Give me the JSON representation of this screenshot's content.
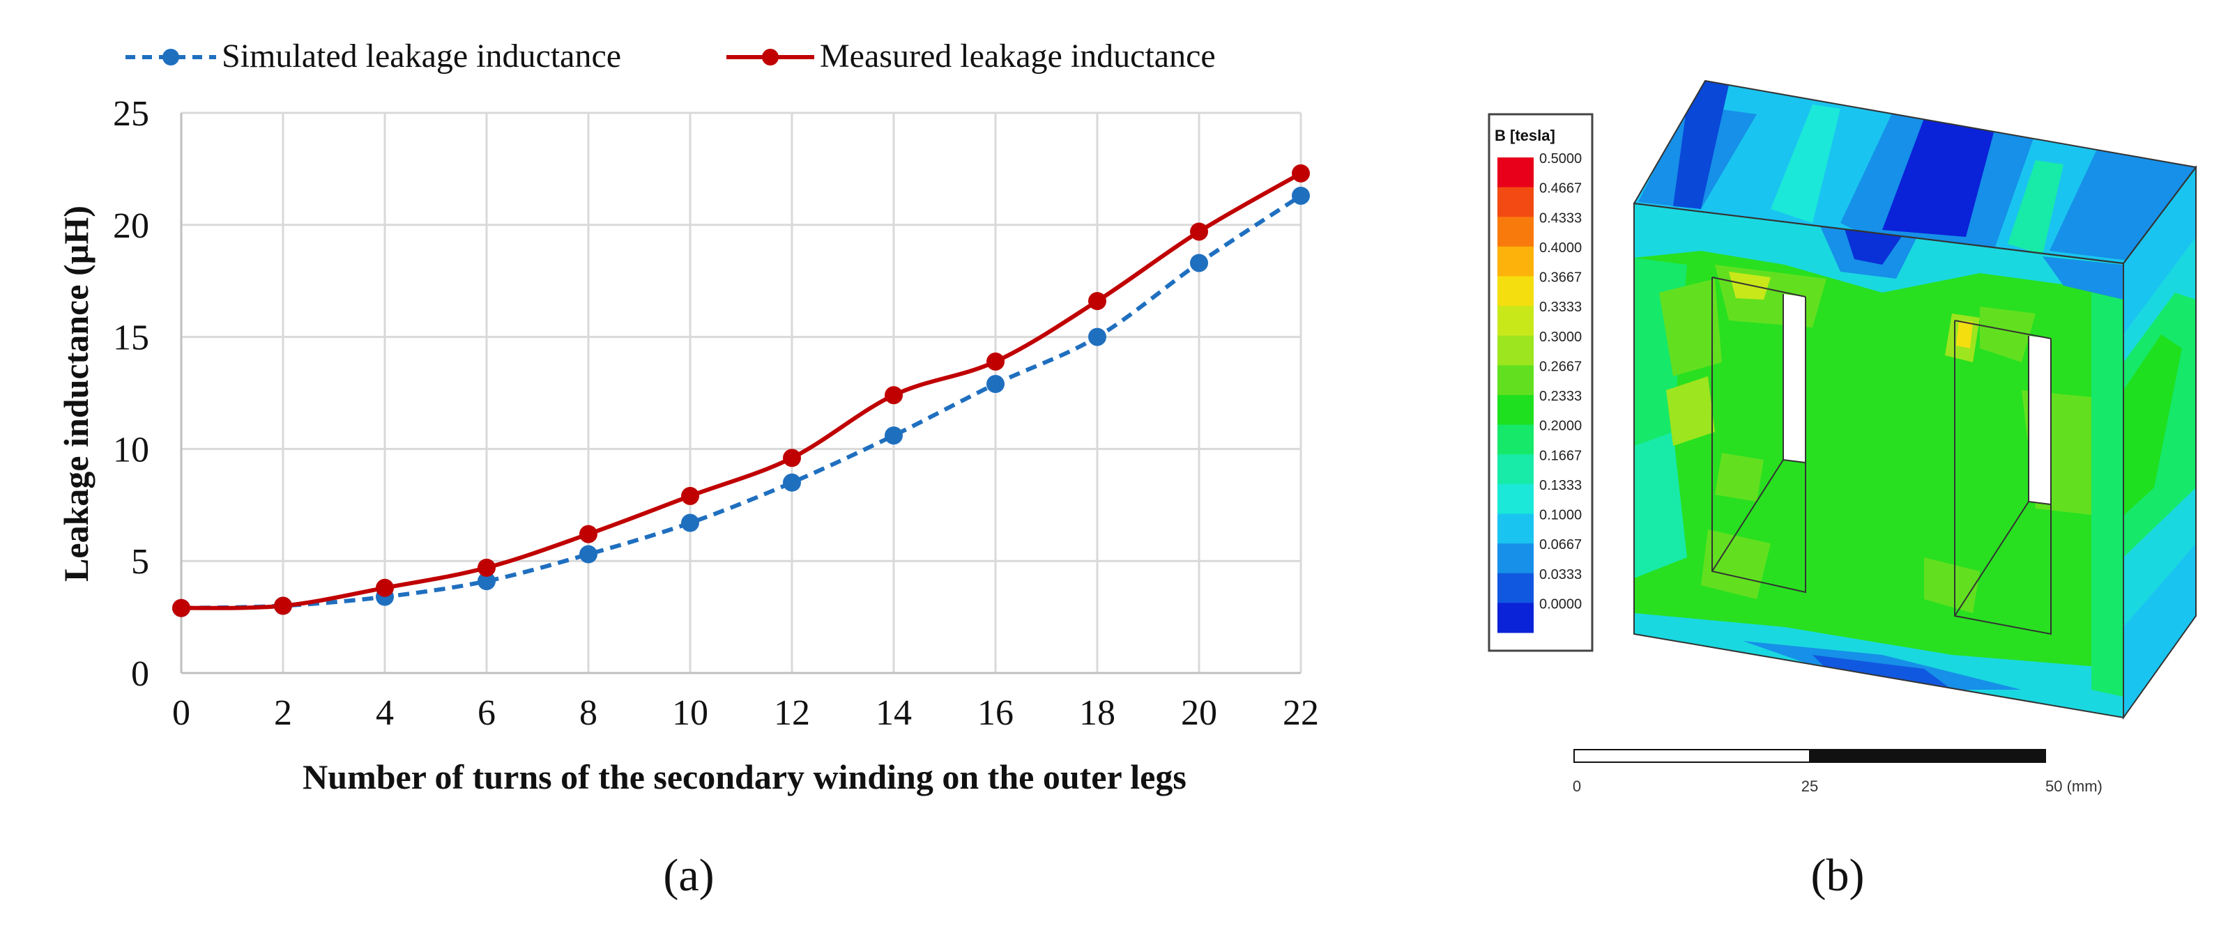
{
  "chart_data": {
    "type": "line",
    "panel_label": "(a)",
    "xlabel": "Number of turns of the secondary winding on the outer legs",
    "ylabel": "Leakage inductance (µH)",
    "x": [
      0,
      2,
      4,
      6,
      8,
      10,
      12,
      14,
      16,
      18,
      20,
      22
    ],
    "xticks": [
      "0",
      "2",
      "4",
      "6",
      "8",
      "10",
      "12",
      "14",
      "16",
      "18",
      "20",
      "22"
    ],
    "yticks": [
      "0",
      "5",
      "10",
      "15",
      "20",
      "25"
    ],
    "xlim": [
      0,
      22
    ],
    "ylim": [
      0,
      25
    ],
    "grid": true,
    "legend_position": "top",
    "series": [
      {
        "name": "Simulated leakage inductance",
        "style": "dashed",
        "color": "#1f6fbf",
        "values": [
          2.9,
          3.0,
          3.4,
          4.1,
          5.3,
          6.7,
          8.5,
          10.6,
          12.9,
          15.0,
          18.3,
          21.3
        ]
      },
      {
        "name": "Measured leakage inductance",
        "style": "solid",
        "color": "#c00000",
        "values": [
          2.9,
          3.0,
          3.8,
          4.7,
          6.2,
          7.9,
          9.6,
          12.4,
          13.9,
          16.6,
          19.7,
          22.3
        ]
      }
    ]
  },
  "figure_b": {
    "panel_label": "(b)",
    "colorbar_title": "B [tesla]",
    "colorbar_ticks": [
      "0.5000",
      "0.4667",
      "0.4333",
      "0.4000",
      "0.3667",
      "0.3333",
      "0.3000",
      "0.2667",
      "0.2333",
      "0.2000",
      "0.1667",
      "0.1333",
      "0.1000",
      "0.0667",
      "0.0333",
      "0.0000"
    ],
    "colorbar_colors": [
      "#e8001a",
      "#f24a12",
      "#f97a0c",
      "#fcb20a",
      "#f4de10",
      "#c9e81a",
      "#9de51e",
      "#62e01f",
      "#1fe01e",
      "#16e86a",
      "#18eaa8",
      "#1be8d8",
      "#1ac4f0",
      "#1690e8",
      "#1158e0",
      "#0a22d8"
    ],
    "scalebar_labels": [
      "0",
      "25",
      "50 (mm)"
    ],
    "core_colors": {
      "face": "#28e020",
      "top": "#1ac4f0",
      "side": "#1ad8e0",
      "dark_blue": "#0a30d8",
      "mid_blue": "#1690e8",
      "window": "#ffffff"
    }
  }
}
